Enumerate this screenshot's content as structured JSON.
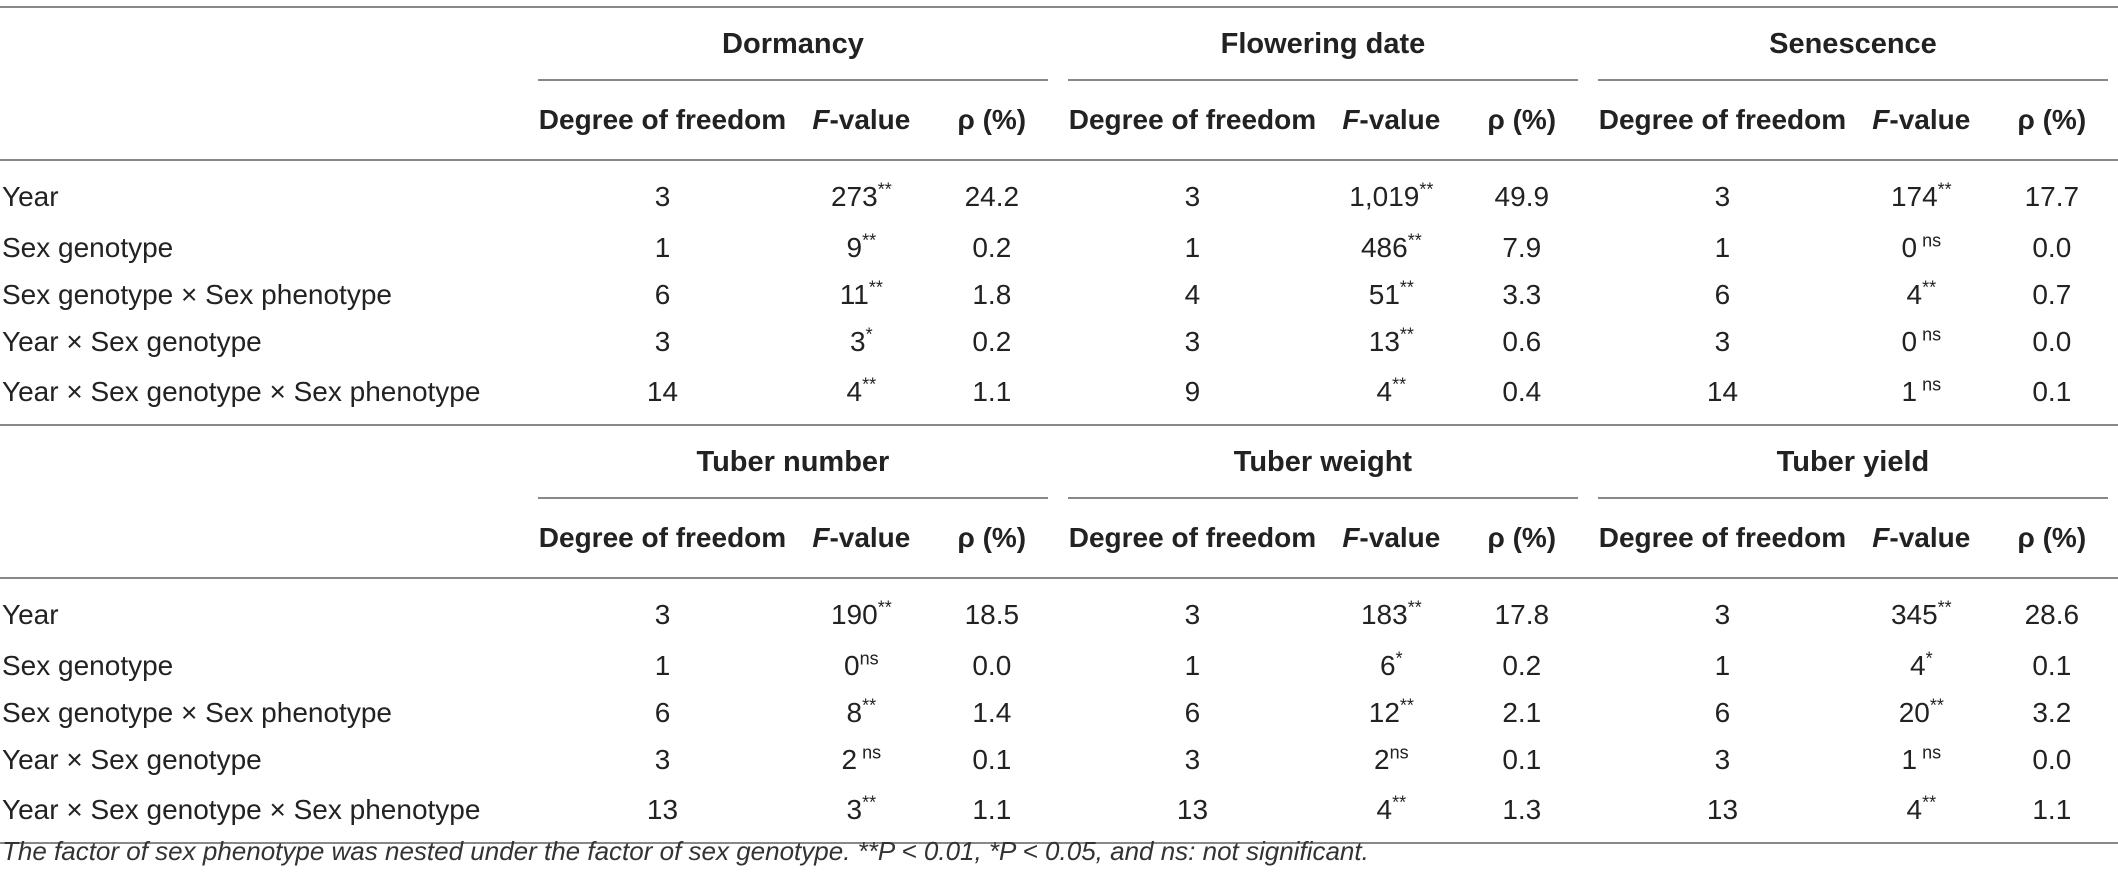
{
  "panels": [
    {
      "groups": [
        "Dormancy",
        "Flowering date",
        "Senescence"
      ],
      "rows": [
        {
          "label": "Year",
          "cells": [
            [
              "3",
              "273",
              "**",
              "24.2"
            ],
            [
              "3",
              "1,019",
              "**",
              "49.9"
            ],
            [
              "3",
              "174",
              "**",
              "17.7"
            ]
          ]
        },
        {
          "label": "Sex genotype",
          "cells": [
            [
              "1",
              "9",
              "**",
              "0.2"
            ],
            [
              "1",
              "486",
              "**",
              "7.9"
            ],
            [
              "1",
              "0",
              " ns",
              "0.0"
            ]
          ]
        },
        {
          "label": "Sex genotype × Sex phenotype",
          "cells": [
            [
              "6",
              "11",
              "**",
              "1.8"
            ],
            [
              "4",
              "51",
              "**",
              "3.3"
            ],
            [
              "6",
              "4",
              "**",
              "0.7"
            ]
          ]
        },
        {
          "label": "Year × Sex genotype",
          "cells": [
            [
              "3",
              "3",
              "*",
              "0.2"
            ],
            [
              "3",
              "13",
              "**",
              "0.6"
            ],
            [
              "3",
              "0",
              " ns",
              "0.0"
            ]
          ]
        },
        {
          "label": "Year × Sex genotype × Sex phenotype",
          "cells": [
            [
              "14",
              "4",
              "**",
              "1.1"
            ],
            [
              "9",
              "4",
              "**",
              "0.4"
            ],
            [
              "14",
              "1",
              " ns",
              "0.1"
            ]
          ]
        }
      ]
    },
    {
      "groups": [
        "Tuber number",
        "Tuber weight",
        "Tuber yield"
      ],
      "rows": [
        {
          "label": "Year",
          "cells": [
            [
              "3",
              "190",
              "**",
              "18.5"
            ],
            [
              "3",
              "183",
              "**",
              "17.8"
            ],
            [
              "3",
              "345",
              "**",
              "28.6"
            ]
          ]
        },
        {
          "label": "Sex genotype",
          "cells": [
            [
              "1",
              "0",
              "ns",
              "0.0"
            ],
            [
              "1",
              "6",
              "*",
              "0.2"
            ],
            [
              "1",
              "4",
              "*",
              "0.1"
            ]
          ]
        },
        {
          "label": "Sex genotype × Sex phenotype",
          "cells": [
            [
              "6",
              "8",
              "**",
              "1.4"
            ],
            [
              "6",
              "12",
              "**",
              "2.1"
            ],
            [
              "6",
              "20",
              "**",
              "3.2"
            ]
          ]
        },
        {
          "label": "Year × Sex genotype",
          "cells": [
            [
              "3",
              "2",
              " ns",
              "0.1"
            ],
            [
              "3",
              "2",
              "ns",
              "0.1"
            ],
            [
              "3",
              "1",
              " ns",
              "0.0"
            ]
          ]
        },
        {
          "label": "Year × Sex genotype × Sex phenotype",
          "cells": [
            [
              "13",
              "3",
              "**",
              "1.1"
            ],
            [
              "13",
              "4",
              "**",
              "1.3"
            ],
            [
              "13",
              "4",
              "**",
              "1.1"
            ]
          ]
        }
      ]
    }
  ],
  "subheaders": {
    "dof": "Degree of freedom",
    "f_letter": "F",
    "f_rest": "-value",
    "rho": "ρ (%)"
  },
  "footnote": "The factor of sex phenotype was nested under the factor of sex genotype. **P < 0.01, *P < 0.05, and ns: not significant."
}
